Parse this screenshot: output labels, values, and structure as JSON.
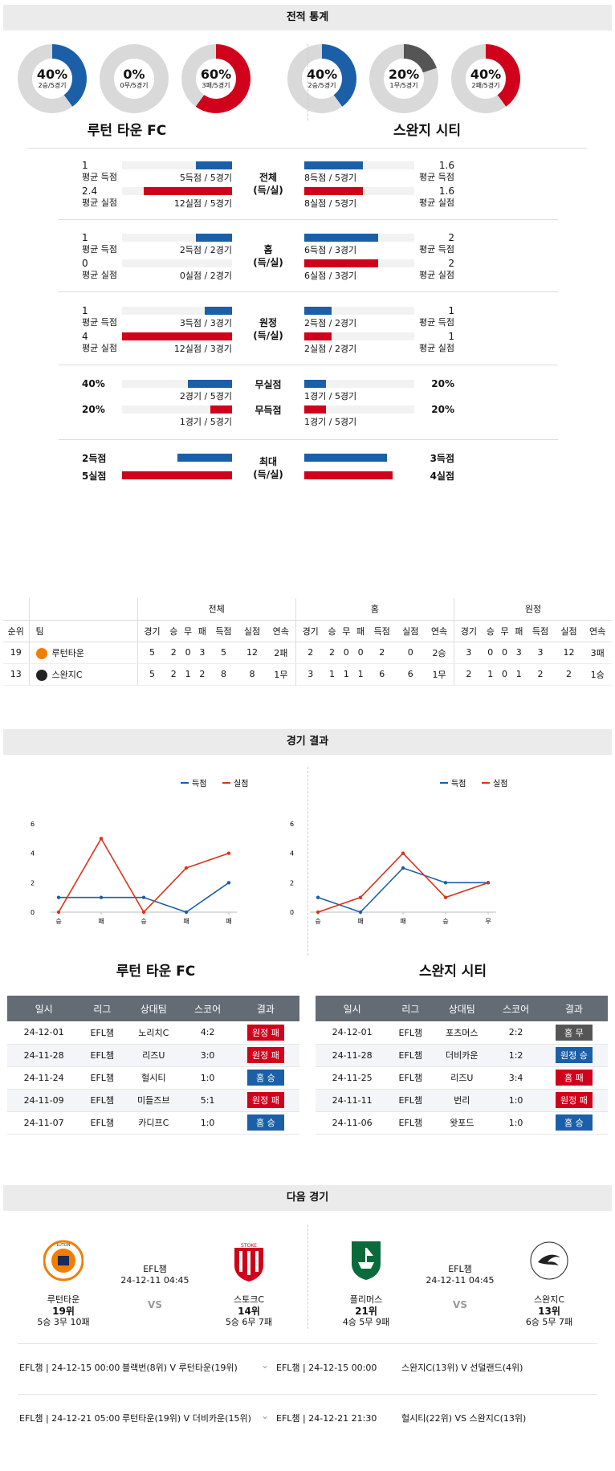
{
  "sections": {
    "stats": "전적 통계",
    "results": "경기 결과",
    "next": "다음 경기"
  },
  "teams": {
    "home": "루턴 타운 FC",
    "away": "스완지 시티"
  },
  "donuts": [
    {
      "pct": "40%",
      "sub": "2승/5경기",
      "fill": 0.4,
      "color": "#1a5fa8"
    },
    {
      "pct": "0%",
      "sub": "0무/5경기",
      "fill": 0,
      "color": "#555555"
    },
    {
      "pct": "60%",
      "sub": "3패/5경기",
      "fill": 0.6,
      "color": "#d0021b"
    },
    {
      "pct": "40%",
      "sub": "2승/5경기",
      "fill": 0.4,
      "color": "#1a5fa8"
    },
    {
      "pct": "20%",
      "sub": "1무/5경기",
      "fill": 0.2,
      "color": "#555555"
    },
    {
      "pct": "40%",
      "sub": "2패/5경기",
      "fill": 0.4,
      "color": "#d0021b"
    }
  ],
  "compare": [
    {
      "label": "전체\n(득/실)",
      "rows": [
        {
          "lv": "1",
          "ll": "평균 득점",
          "lt": "5득점 / 5경기",
          "lf": 0.33,
          "lc": "blue",
          "rv": "1.6",
          "rl": "평균 득점",
          "rt": "8득점 / 5경기",
          "rf": 0.53,
          "rc": "blue"
        },
        {
          "lv": "2.4",
          "ll": "평균 실점",
          "lt": "12실점 / 5경기",
          "lf": 0.8,
          "lc": "red",
          "rv": "1.6",
          "rl": "평균 실점",
          "rt": "8실점 / 5경기",
          "rf": 0.53,
          "rc": "red"
        }
      ]
    },
    {
      "label": "홈\n(득/실)",
      "rows": [
        {
          "lv": "1",
          "ll": "평균 득점",
          "lt": "2득점 / 2경기",
          "lf": 0.33,
          "lc": "blue",
          "rv": "2",
          "rl": "평균 득점",
          "rt": "6득점 / 3경기",
          "rf": 0.67,
          "rc": "blue"
        },
        {
          "lv": "0",
          "ll": "평균 실점",
          "lt": "0실점 / 2경기",
          "lf": 0,
          "lc": "red",
          "rv": "2",
          "rl": "평균 실점",
          "rt": "6실점 / 3경기",
          "rf": 0.67,
          "rc": "red"
        }
      ]
    },
    {
      "label": "원정\n(득/실)",
      "rows": [
        {
          "lv": "1",
          "ll": "평균 득점",
          "lt": "3득점 / 3경기",
          "lf": 0.25,
          "lc": "blue",
          "rv": "1",
          "rl": "평균 득점",
          "rt": "2득점 / 2경기",
          "rf": 0.25,
          "rc": "blue"
        },
        {
          "lv": "4",
          "ll": "평균 실점",
          "lt": "12실점 / 3경기",
          "lf": 1,
          "lc": "red",
          "rv": "1",
          "rl": "평균 실점",
          "rt": "2실점 / 2경기",
          "rf": 0.25,
          "rc": "red"
        }
      ]
    }
  ],
  "nogoal": [
    {
      "label": "무실점",
      "lv": "40%",
      "lt": "2경기 / 5경기",
      "lf": 0.4,
      "lc": "blue",
      "rv": "20%",
      "rt": "1경기 / 5경기",
      "rf": 0.2,
      "rc": "blue"
    },
    {
      "label": "무득점",
      "lv": "20%",
      "lt": "1경기 / 5경기",
      "lf": 0.2,
      "lc": "red",
      "rv": "20%",
      "rt": "1경기 / 5경기",
      "rf": 0.2,
      "rc": "red"
    }
  ],
  "max": {
    "label": "최대\n(득/실)",
    "l1": "2득점",
    "l2": "5실점",
    "r1": "3득점",
    "r2": "4실점",
    "lf1": 0.5,
    "lf2": 1,
    "rf1": 0.75,
    "rf2": 0.8
  },
  "standings": {
    "groups": [
      "전체",
      "홈",
      "원정"
    ],
    "cols": [
      "순위",
      "팀",
      "경기",
      "승",
      "무",
      "패",
      "득점",
      "실점",
      "연속",
      "경기",
      "승",
      "무",
      "패",
      "득점",
      "실점",
      "연속",
      "경기",
      "승",
      "무",
      "패",
      "득점",
      "실점",
      "연속"
    ],
    "rows": [
      [
        "19",
        "루턴타운",
        "5",
        "2",
        "0",
        "3",
        "5",
        "12",
        "2패",
        "2",
        "2",
        "0",
        "0",
        "2",
        "0",
        "2승",
        "3",
        "0",
        "0",
        "3",
        "3",
        "12",
        "3패"
      ],
      [
        "13",
        "스완지C",
        "5",
        "2",
        "1",
        "2",
        "8",
        "8",
        "1무",
        "3",
        "1",
        "1",
        "1",
        "6",
        "6",
        "1무",
        "2",
        "1",
        "0",
        "1",
        "2",
        "2",
        "1승"
      ]
    ]
  },
  "chart_data": [
    {
      "type": "line",
      "legend": [
        "득점",
        "실점"
      ],
      "categories": [
        "승",
        "패",
        "승",
        "패",
        "패"
      ],
      "series": [
        {
          "name": "득점",
          "values": [
            1,
            1,
            1,
            0,
            2
          ]
        },
        {
          "name": "실점",
          "values": [
            0,
            5,
            0,
            3,
            4
          ]
        }
      ],
      "ylim": [
        0,
        6
      ],
      "yticks": [
        "0",
        "2",
        "4",
        "6"
      ]
    },
    {
      "type": "line",
      "legend": [
        "득점",
        "실점"
      ],
      "categories": [
        "승",
        "패",
        "패",
        "승",
        "무"
      ],
      "series": [
        {
          "name": "득점",
          "values": [
            1,
            0,
            3,
            2,
            2
          ]
        },
        {
          "name": "실점",
          "values": [
            0,
            1,
            4,
            1,
            2
          ]
        }
      ],
      "ylim": [
        0,
        6
      ],
      "yticks": [
        "0",
        "2",
        "4",
        "6"
      ]
    }
  ],
  "results": {
    "headers": [
      "일시",
      "리그",
      "상대팀",
      "스코어",
      "결과"
    ],
    "home": [
      [
        "24-12-01",
        "EFL챔",
        "노리치C",
        "4:2",
        "원정 패",
        "red"
      ],
      [
        "24-11-28",
        "EFL챔",
        "리즈U",
        "3:0",
        "원정 패",
        "red"
      ],
      [
        "24-11-24",
        "EFL챔",
        "헐시티",
        "1:0",
        "홈 승",
        "blue"
      ],
      [
        "24-11-09",
        "EFL챔",
        "미들즈브",
        "5:1",
        "원정 패",
        "red"
      ],
      [
        "24-11-07",
        "EFL챔",
        "카디프C",
        "1:0",
        "홈 승",
        "blue"
      ]
    ],
    "away": [
      [
        "24-12-01",
        "EFL챔",
        "포츠머스",
        "2:2",
        "홈 무",
        "gray"
      ],
      [
        "24-11-28",
        "EFL챔",
        "더비카운",
        "1:2",
        "원정 승",
        "blue"
      ],
      [
        "24-11-25",
        "EFL챔",
        "리즈U",
        "3:4",
        "홈 패",
        "red"
      ],
      [
        "24-11-11",
        "EFL챔",
        "번리",
        "1:0",
        "원정 패",
        "red"
      ],
      [
        "24-11-06",
        "EFL챔",
        "왓포드",
        "1:0",
        "홈 승",
        "blue"
      ]
    ]
  },
  "next": {
    "left": {
      "home": "루턴타운",
      "hrank": "19위",
      "hrec": "5승 3무 10패",
      "league": "EFL챔",
      "time": "24-12-11 04:45",
      "vs": "VS",
      "away": "스토크C",
      "arank": "14위",
      "arec": "5승 6무 7패"
    },
    "right": {
      "home": "플리머스",
      "hrank": "21위",
      "hrec": "4승 5무 9패",
      "league": "EFL챔",
      "time": "24-12-11 04:45",
      "vs": "VS",
      "away": "스완지C",
      "arank": "13위",
      "arec": "6승 5무 7패"
    },
    "logo_text": {
      "luton": "LUTON TOWN FOOTBALL CLUB",
      "stoke": "STOKE CITY",
      "swansea": "SWANSEA CITY AFC"
    }
  },
  "upcoming": [
    {
      "l": "EFL챔 | 24-12-15 00:00",
      "lm": "블랙번(8위) V 루턴타운(19위)",
      "r": "EFL챔 | 24-12-15 00:00",
      "rm": "스완지C(13위) V 선덜랜드(4위)"
    },
    {
      "l": "EFL챔 | 24-12-21 05:00",
      "lm": "루턴타운(19위) V 더비카운(15위)",
      "r": "EFL챔 | 24-12-21 21:30",
      "rm": "헐시티(22위) VS 스완지C(13위)"
    }
  ]
}
